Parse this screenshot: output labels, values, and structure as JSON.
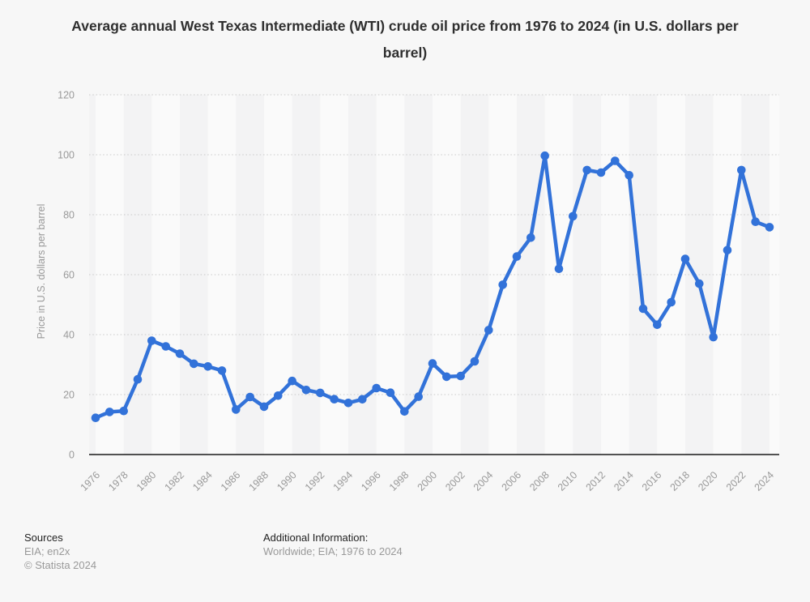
{
  "title": "Average annual West Texas Intermediate (WTI) crude oil price from 1976 to 2024 (in U.S. dollars per barrel)",
  "chart_data": {
    "type": "line",
    "x": [
      1976,
      1977,
      1978,
      1979,
      1980,
      1981,
      1982,
      1983,
      1984,
      1985,
      1986,
      1987,
      1988,
      1989,
      1990,
      1991,
      1992,
      1993,
      1994,
      1995,
      1996,
      1997,
      1998,
      1999,
      2000,
      2001,
      2002,
      2003,
      2004,
      2005,
      2006,
      2007,
      2008,
      2009,
      2010,
      2011,
      2012,
      2013,
      2014,
      2015,
      2016,
      2017,
      2018,
      2019,
      2020,
      2021,
      2022,
      2023,
      2024
    ],
    "series": [
      {
        "name": "WTI crude oil price",
        "values": [
          12.23,
          14.22,
          14.55,
          25.08,
          37.96,
          36.08,
          33.65,
          30.3,
          29.39,
          27.99,
          15.04,
          19.19,
          15.97,
          19.64,
          24.53,
          21.54,
          20.58,
          18.45,
          17.21,
          18.42,
          22.16,
          20.61,
          14.39,
          19.31,
          30.37,
          25.98,
          26.18,
          31.08,
          41.51,
          56.64,
          66.05,
          72.34,
          99.67,
          61.95,
          79.48,
          94.88,
          94.05,
          97.98,
          93.17,
          48.66,
          43.29,
          50.8,
          65.23,
          56.99,
          39.16,
          68.17,
          94.9,
          77.64,
          75.83
        ]
      }
    ],
    "title": "Average annual West Texas Intermediate (WTI) crude oil price from 1976 to 2024 (in U.S. dollars per barrel)",
    "xlabel": "",
    "ylabel": "Price in U.S. dollars per barrel",
    "ylim": [
      0,
      120
    ],
    "yticks": [
      0,
      20,
      40,
      60,
      80,
      100,
      120
    ],
    "xticks": [
      1976,
      1978,
      1980,
      1982,
      1984,
      1986,
      1988,
      1990,
      1992,
      1994,
      1996,
      1998,
      2000,
      2002,
      2004,
      2006,
      2008,
      2010,
      2012,
      2014,
      2016,
      2018,
      2020,
      2022,
      2024
    ],
    "grid": "horizontal-dotted",
    "legend": "none",
    "marker": "circle"
  },
  "footer": {
    "sources_label": "Sources",
    "sources_value": "EIA; en2x",
    "copyright": "© Statista 2024",
    "additional_label": "Additional Information:",
    "additional_value": "Worldwide; EIA; 1976 to 2024"
  },
  "colors": {
    "line": "#3272d9",
    "axis": "#1a1a1a",
    "grid": "#c9c9c9",
    "tick_label": "#999999",
    "band_light": "#fafafa",
    "band_dark": "#f3f3f4",
    "background": "#f7f7f7",
    "title_text": "#2f2f2f",
    "footer_label": "#1f1f1f",
    "footer_value": "#999999"
  }
}
